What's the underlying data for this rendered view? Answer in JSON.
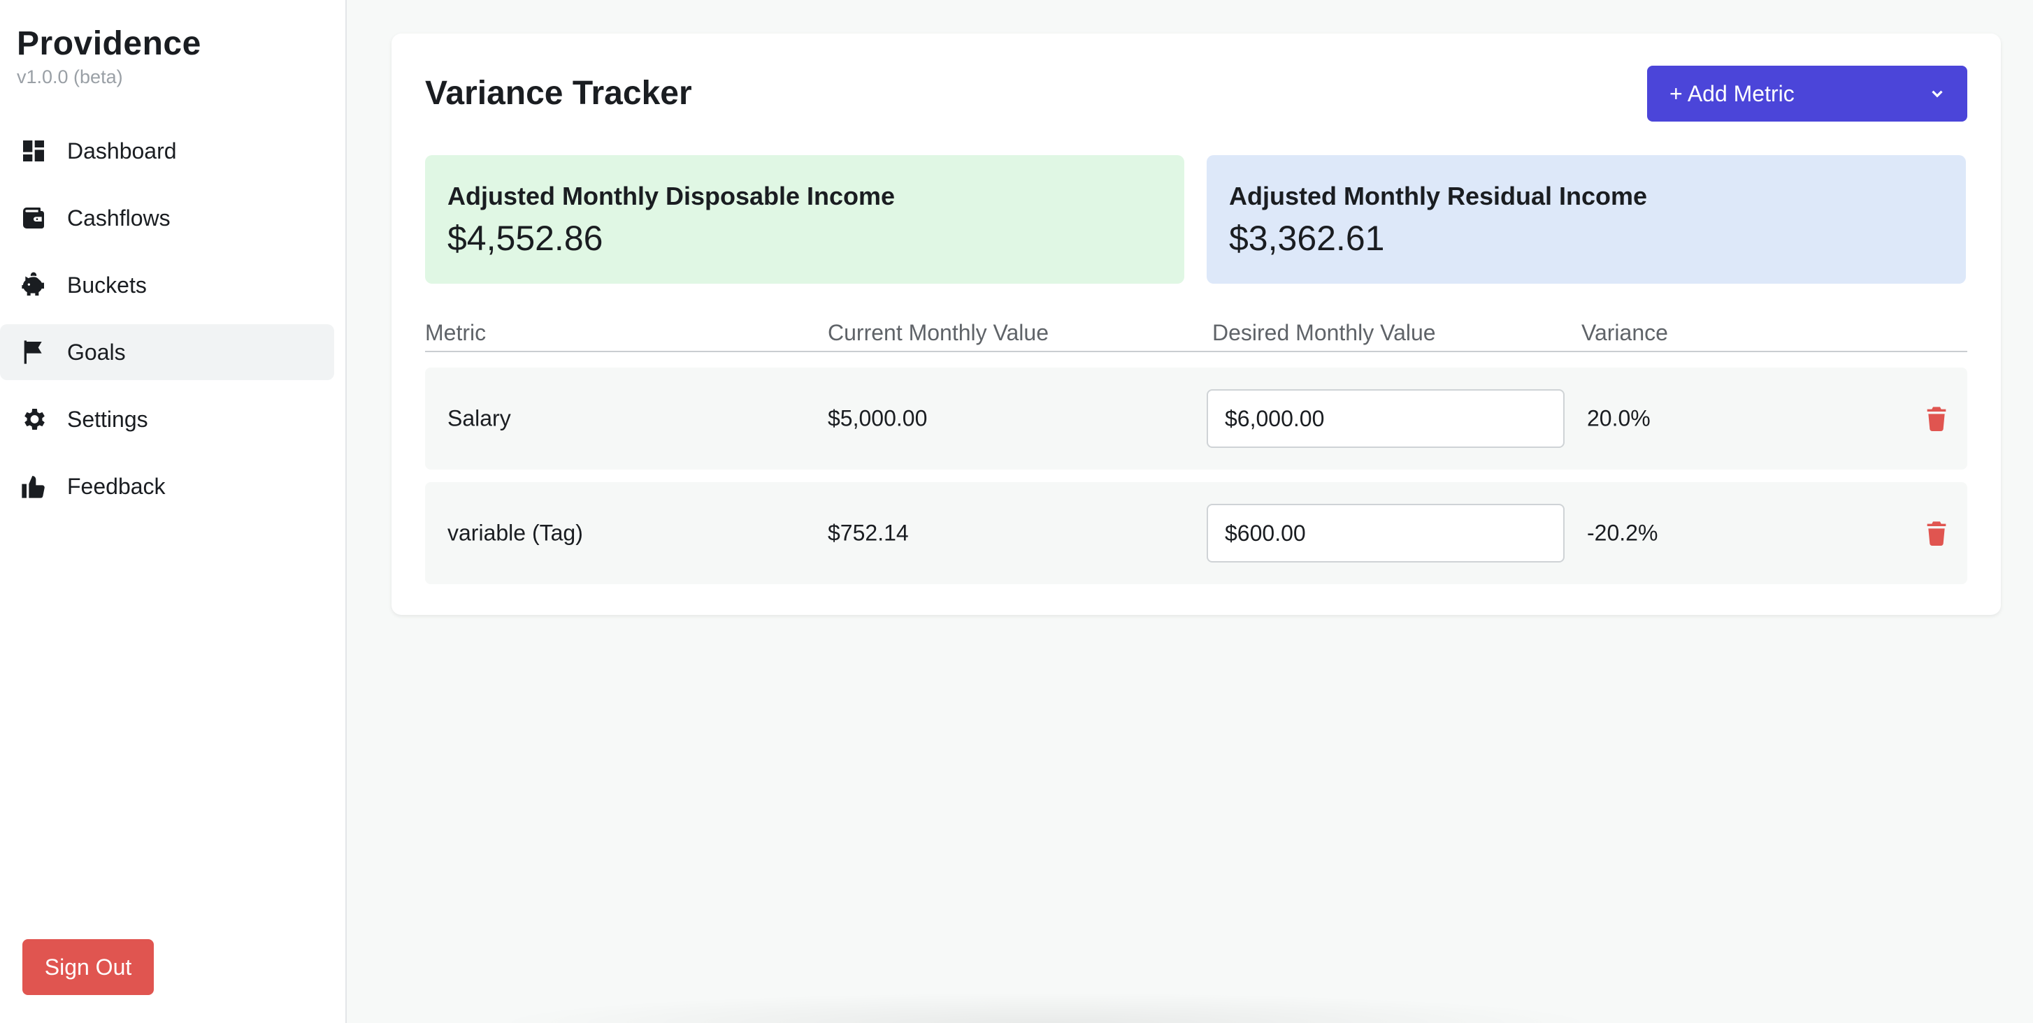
{
  "brand": {
    "title": "Providence",
    "version": "v1.0.0 (beta)"
  },
  "sidebar": {
    "items": [
      {
        "label": "Dashboard",
        "icon": "dashboard-icon",
        "active": false
      },
      {
        "label": "Cashflows",
        "icon": "wallet-icon",
        "active": false
      },
      {
        "label": "Buckets",
        "icon": "piggy-bank-icon",
        "active": false
      },
      {
        "label": "Goals",
        "icon": "flag-icon",
        "active": true
      },
      {
        "label": "Settings",
        "icon": "gear-icon",
        "active": false
      },
      {
        "label": "Feedback",
        "icon": "thumbs-up-icon",
        "active": false
      }
    ],
    "sign_out_label": "Sign Out"
  },
  "main": {
    "title": "Variance Tracker",
    "add_metric_label": "+ Add Metric",
    "summary": {
      "disposable": {
        "label": "Adjusted Monthly Disposable Income",
        "value": "$4,552.86"
      },
      "residual": {
        "label": "Adjusted Monthly Residual Income",
        "value": "$3,362.61"
      }
    },
    "table": {
      "headers": {
        "metric": "Metric",
        "current": "Current Monthly Value",
        "desired": "Desired Monthly Value",
        "variance": "Variance"
      },
      "rows": [
        {
          "metric": "Salary",
          "current": "$5,000.00",
          "desired": "$6,000.00",
          "variance": "20.0%"
        },
        {
          "metric": "variable (Tag)",
          "current": "$752.14",
          "desired": "$600.00",
          "variance": "-20.2%"
        }
      ]
    }
  },
  "colors": {
    "accent": "#4b45d9",
    "danger": "#e05550",
    "disposable_bg": "#e0f7e4",
    "residual_bg": "#dde8f9"
  }
}
